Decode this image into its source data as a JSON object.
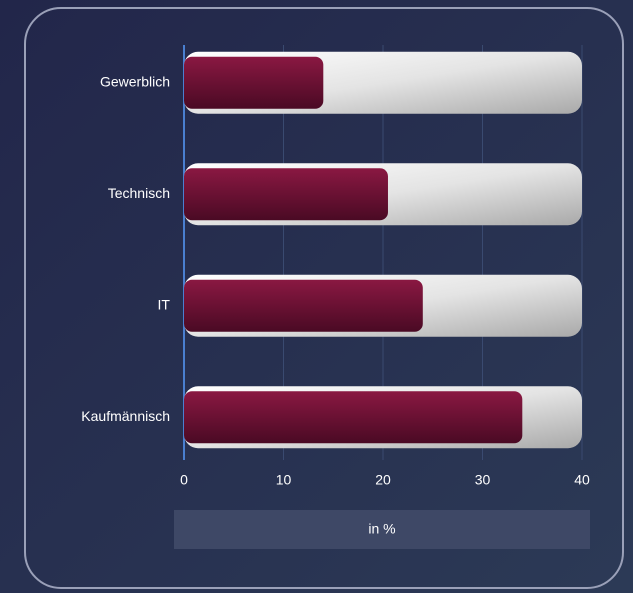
{
  "chart_data": {
    "type": "bar",
    "orientation": "horizontal",
    "categories": [
      "Gewerblich",
      "Technisch",
      "IT",
      "Kaufmännisch"
    ],
    "values": [
      14,
      20.5,
      24,
      34
    ],
    "color": "#7a1238",
    "xlabel": "in %",
    "xlim": [
      0,
      40
    ],
    "xticks": [
      0,
      10,
      20,
      30,
      40
    ],
    "grid": true
  }
}
